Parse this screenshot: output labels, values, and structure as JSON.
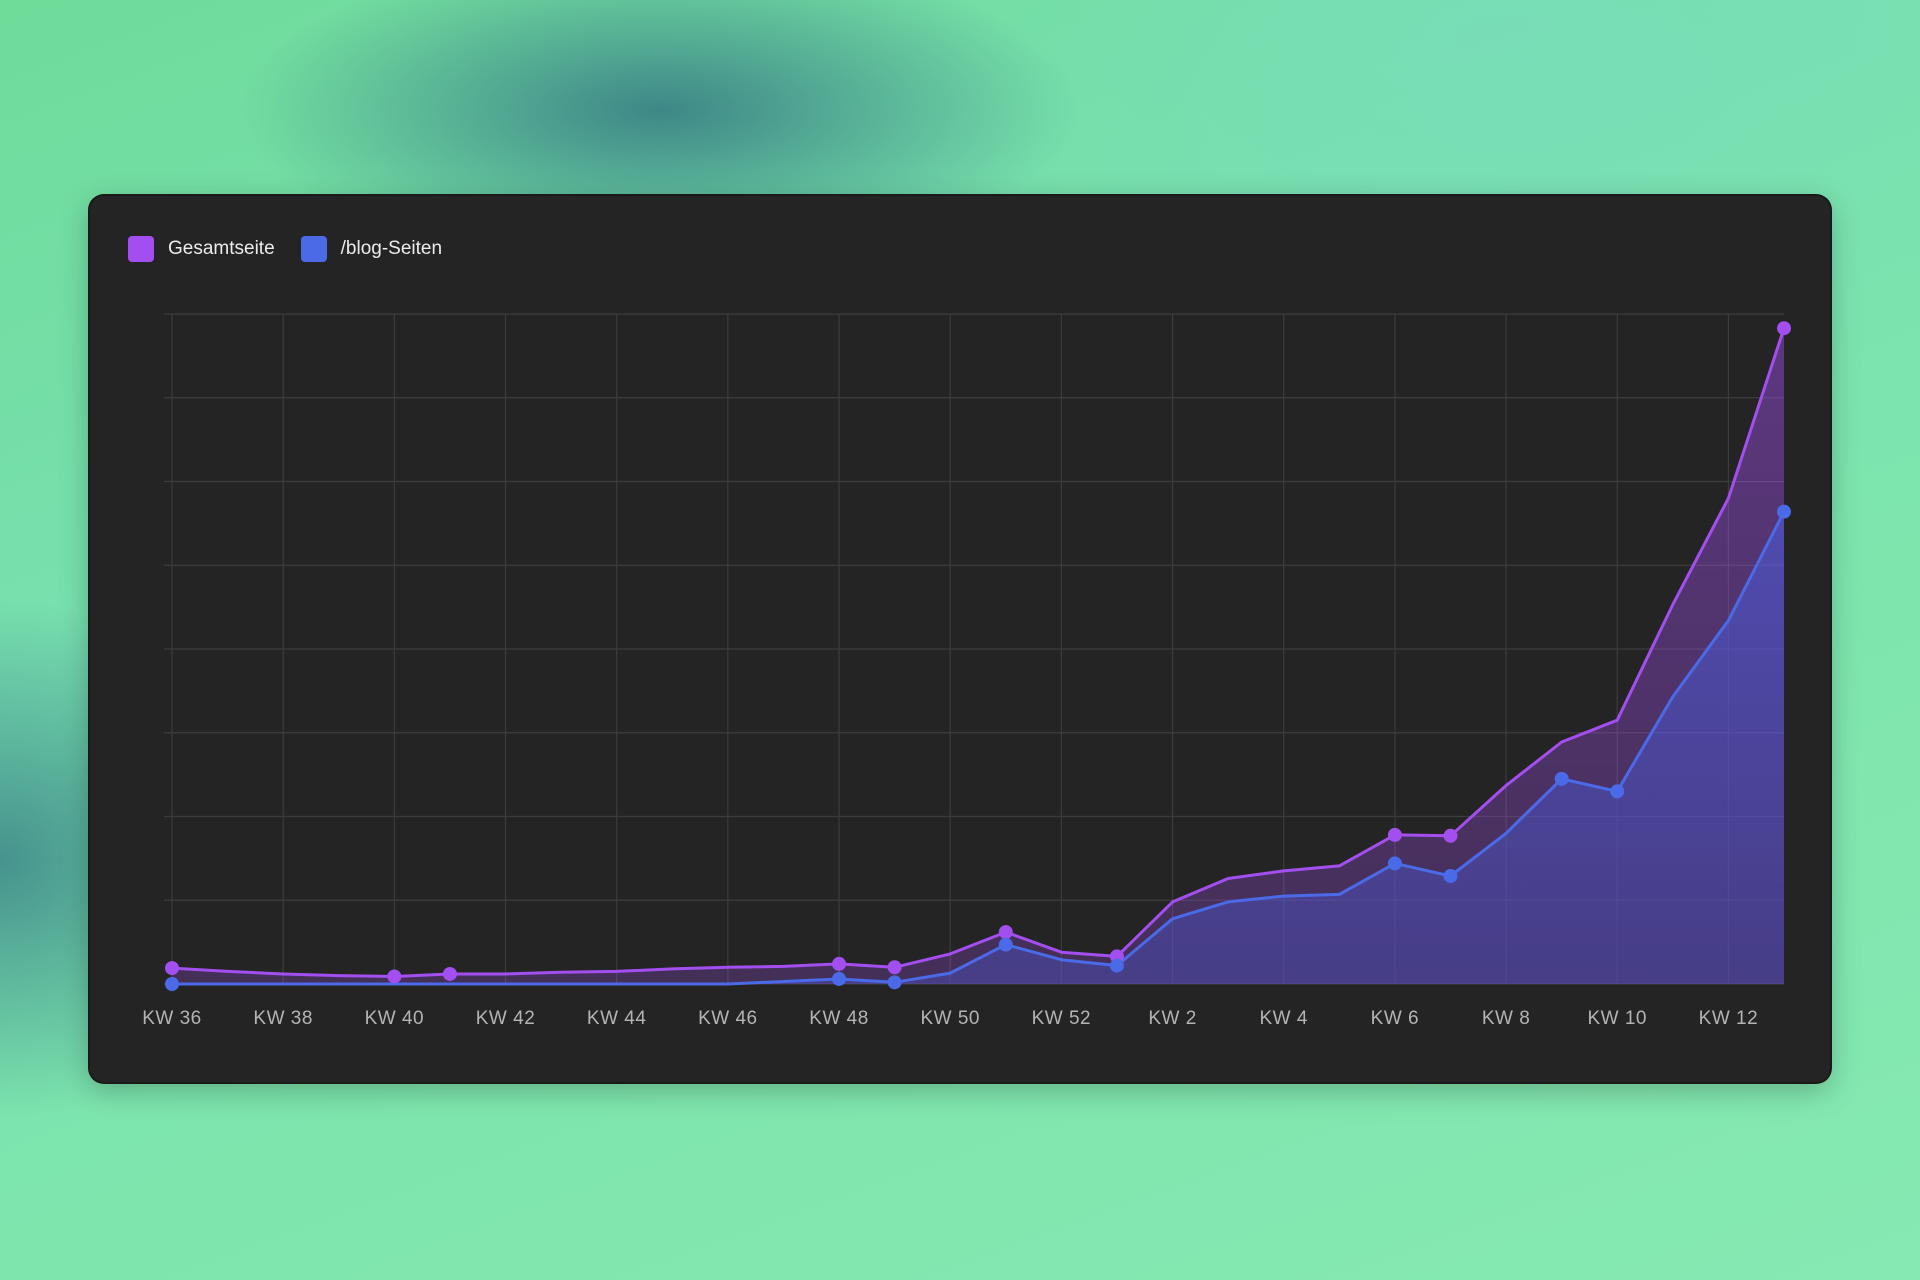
{
  "chart_data": {
    "type": "area",
    "title": "",
    "xlabel": "",
    "ylabel": "",
    "grid": true,
    "legend_position": "top-left",
    "ylim": [
      0,
      8
    ],
    "categories": [
      "KW 36",
      "KW 37",
      "KW 38",
      "KW 39",
      "KW 40",
      "KW 41",
      "KW 42",
      "KW 43",
      "KW 44",
      "KW 45",
      "KW 46",
      "KW 47",
      "KW 48",
      "KW 49",
      "KW 50",
      "KW 51",
      "KW 52",
      "KW 1",
      "KW 2",
      "KW 3",
      "KW 4",
      "KW 5",
      "KW 6",
      "KW 7",
      "KW 8",
      "KW 9",
      "KW 10",
      "KW 11",
      "KW 12",
      "KW 13"
    ],
    "tick_labels": [
      "KW 36",
      "KW 38",
      "KW 40",
      "KW 42",
      "KW 44",
      "KW 46",
      "KW 48",
      "KW 50",
      "KW 52",
      "KW 2",
      "KW 4",
      "KW 6",
      "KW 8",
      "KW 10",
      "KW 12"
    ],
    "series": [
      {
        "name": "Gesamtseite",
        "color": "#a34ff0",
        "values": [
          0.19,
          0.15,
          0.12,
          0.1,
          0.09,
          0.12,
          0.12,
          0.14,
          0.15,
          0.18,
          0.2,
          0.21,
          0.24,
          0.2,
          0.36,
          0.62,
          0.38,
          0.33,
          0.98,
          1.26,
          1.35,
          1.41,
          1.78,
          1.77,
          2.37,
          2.89,
          3.15,
          4.53,
          5.8,
          7.83
        ],
        "markers": [
          0,
          4,
          5,
          12,
          13,
          15,
          17,
          22,
          23,
          29
        ]
      },
      {
        "name": "/blog-Seiten",
        "color": "#4a6ae8",
        "values": [
          0.0,
          0.0,
          0.0,
          0.0,
          0.0,
          0.0,
          0.0,
          0.0,
          0.0,
          0.0,
          0.0,
          0.03,
          0.06,
          0.02,
          0.13,
          0.47,
          0.29,
          0.22,
          0.78,
          0.98,
          1.05,
          1.07,
          1.44,
          1.29,
          1.8,
          2.45,
          2.3,
          3.43,
          4.34,
          5.64
        ],
        "markers": [
          0,
          12,
          13,
          15,
          17,
          22,
          23,
          25,
          26,
          29
        ]
      }
    ]
  },
  "colors": {
    "card_bg": "#242424",
    "grid": "#3c3c3c",
    "tick_text": "#b4b4b4"
  }
}
